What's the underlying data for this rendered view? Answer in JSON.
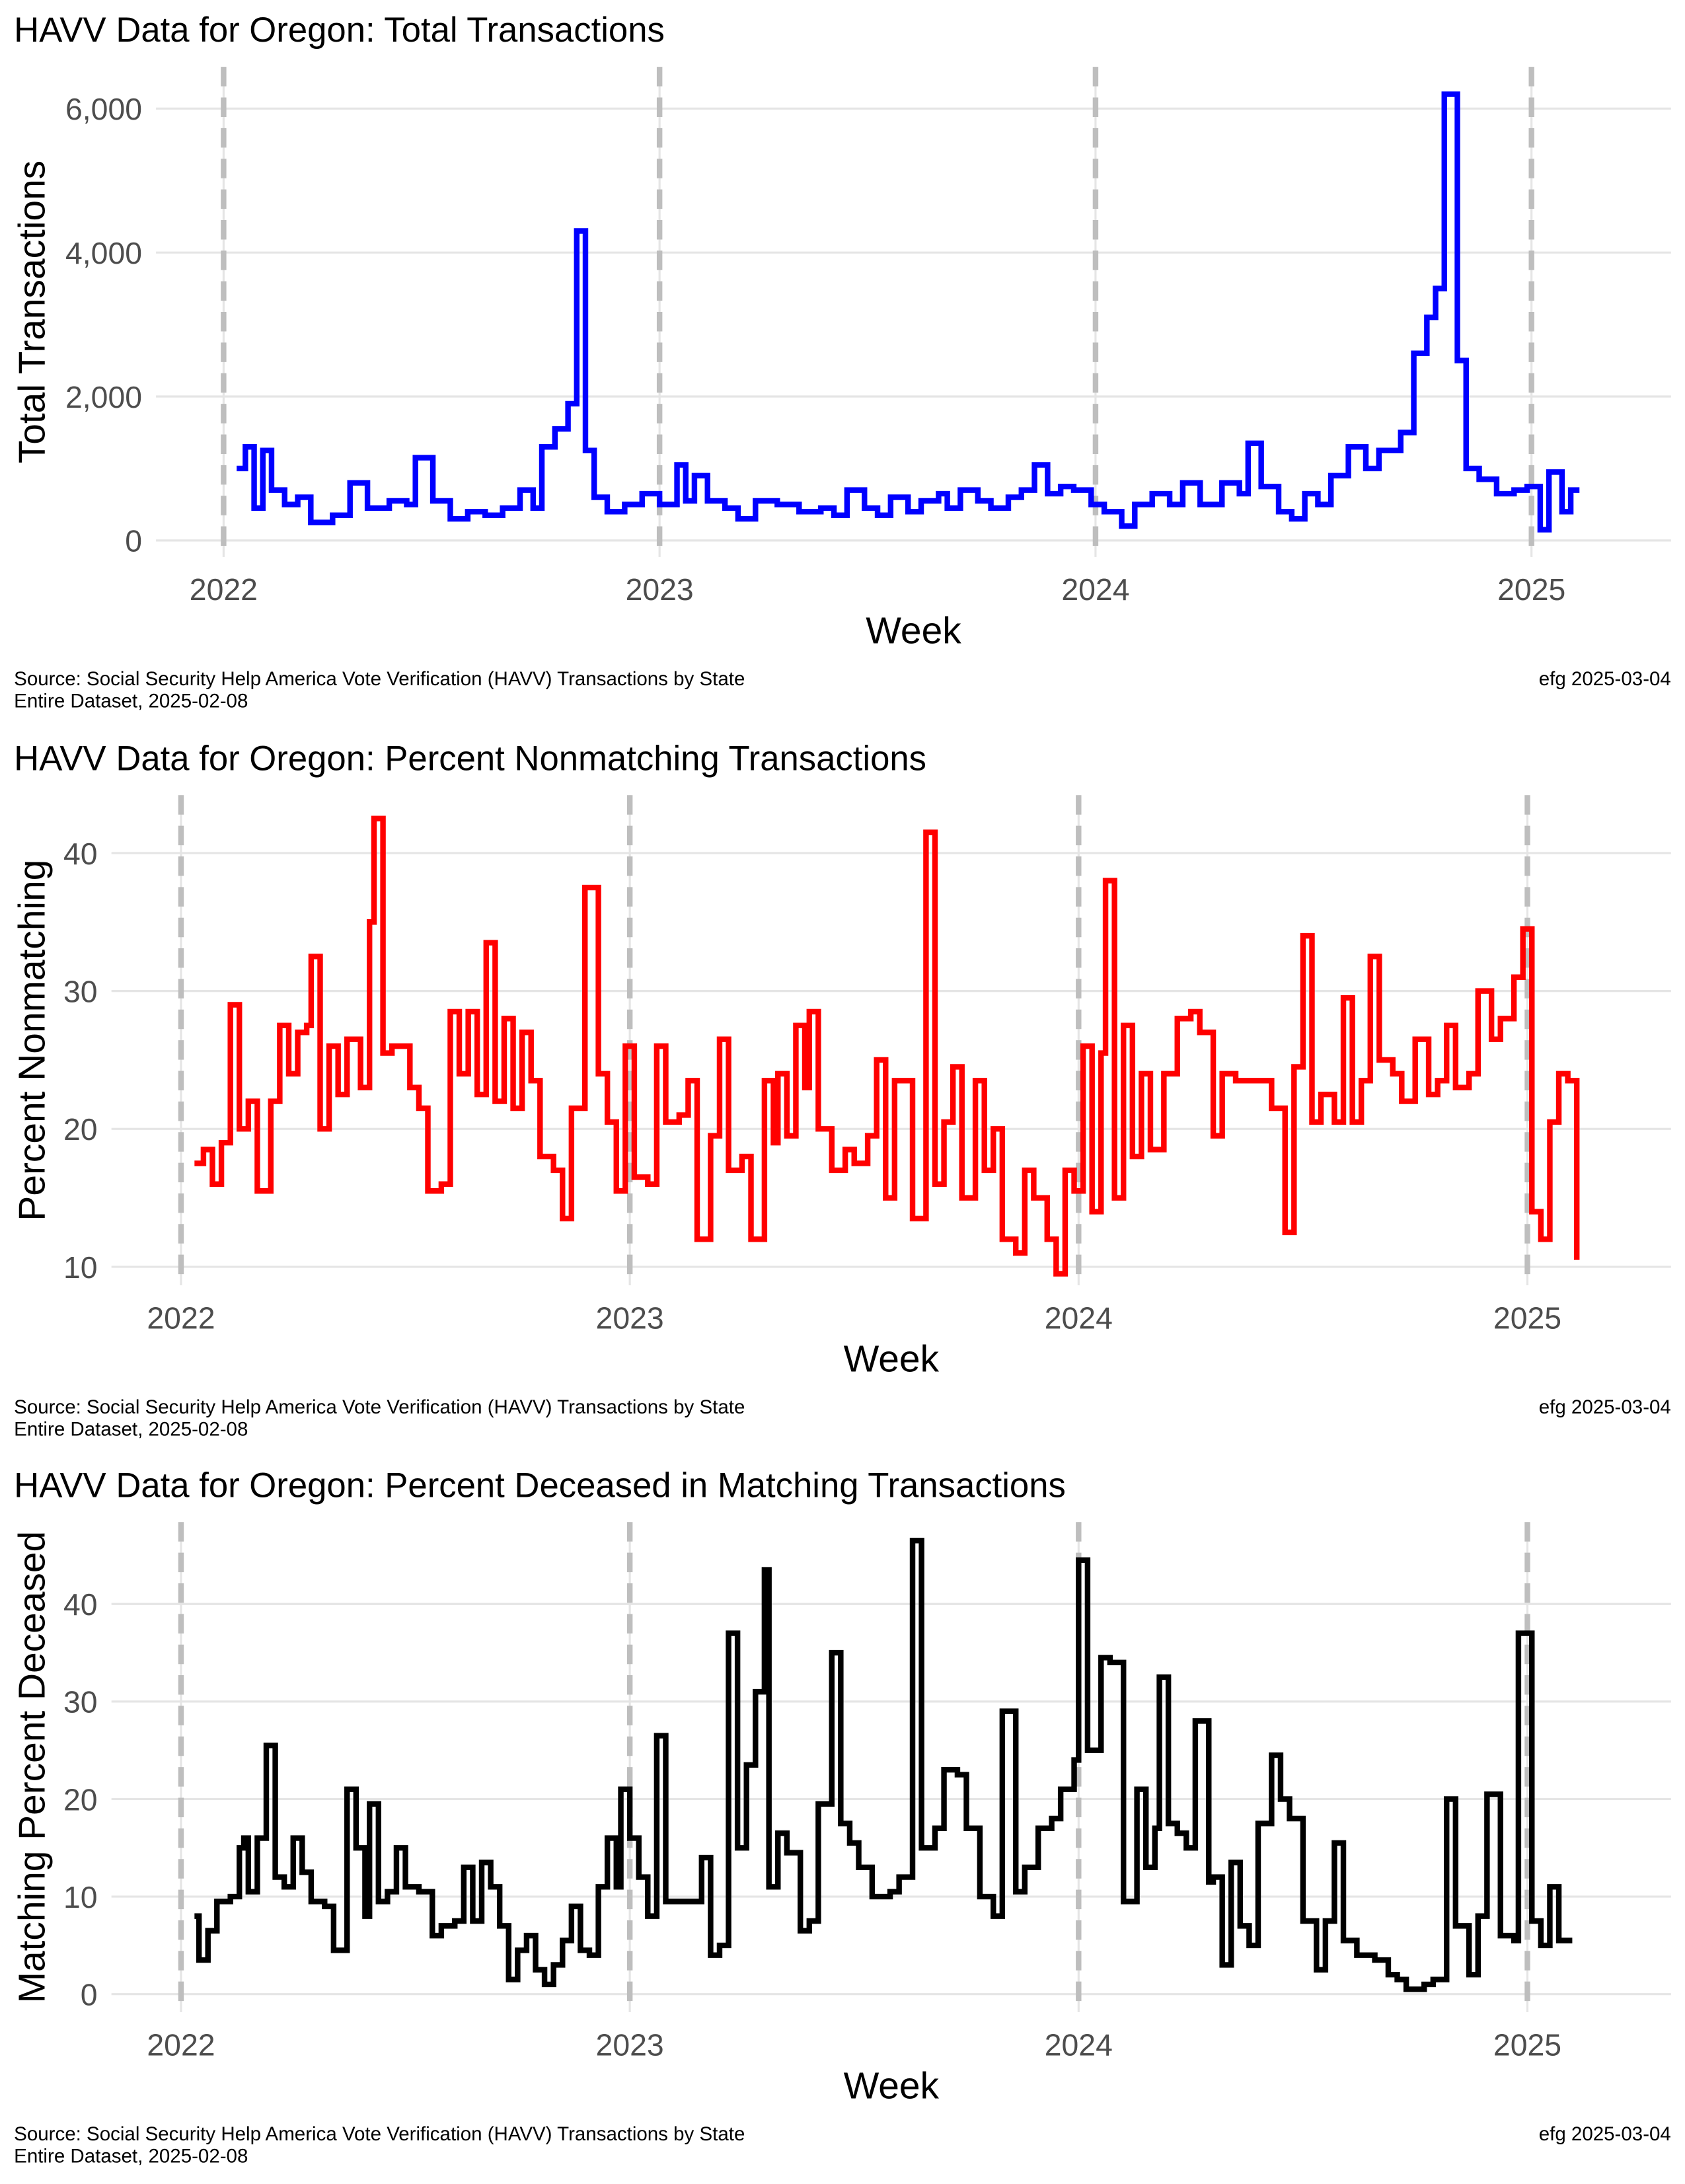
{
  "chart_data": [
    {
      "type": "line",
      "step": true,
      "title": "HAVV Data for Oregon:  Total Transactions",
      "xlabel": "Week",
      "ylabel": "Total Transactions",
      "source": "Source:  Social Security Help America Vote Verification (HAVV) Transactions by State",
      "dataset": "Entire Dataset, 2025-02-08",
      "credit": "efg 2025-03-04",
      "color": "#0000ff",
      "grid": true,
      "xlim": [
        2021.845,
        2025.32
      ],
      "xticks": [
        2022,
        2023,
        2024,
        2025
      ],
      "ylim": [
        -230,
        6580
      ],
      "yticks": [
        0,
        {
          "value": 2000,
          "label": "2,000"
        },
        {
          "value": 4000,
          "label": "4,000"
        },
        {
          "value": 6000,
          "label": "6,000"
        }
      ],
      "x": [
        2022.03,
        2022.05,
        2022.07,
        2022.09,
        2022.11,
        2022.14,
        2022.17,
        2022.2,
        2022.25,
        2022.29,
        2022.33,
        2022.38,
        2022.42,
        2022.44,
        2022.48,
        2022.52,
        2022.56,
        2022.6,
        2022.64,
        2022.68,
        2022.71,
        2022.73,
        2022.76,
        2022.79,
        2022.81,
        2022.83,
        2022.85,
        2022.88,
        2022.92,
        2022.96,
        2023.0,
        2023.04,
        2023.06,
        2023.08,
        2023.11,
        2023.15,
        2023.18,
        2023.22,
        2023.27,
        2023.32,
        2023.37,
        2023.4,
        2023.43,
        2023.47,
        2023.5,
        2023.53,
        2023.57,
        2023.6,
        2023.64,
        2023.66,
        2023.69,
        2023.73,
        2023.76,
        2023.8,
        2023.83,
        2023.86,
        2023.89,
        2023.92,
        2023.95,
        2023.99,
        2024.02,
        2024.06,
        2024.09,
        2024.13,
        2024.17,
        2024.2,
        2024.24,
        2024.29,
        2024.33,
        2024.35,
        2024.38,
        2024.42,
        2024.45,
        2024.48,
        2024.51,
        2024.54,
        2024.58,
        2024.62,
        2024.65,
        2024.7,
        2024.73,
        2024.76,
        2024.78,
        2024.8,
        2024.83,
        2024.85,
        2024.88,
        2024.92,
        2024.96,
        2024.99,
        2025.02,
        2025.04,
        2025.07,
        2025.09,
        2025.11
      ],
      "values": [
        1000,
        1300,
        450,
        1250,
        700,
        500,
        600,
        250,
        350,
        800,
        450,
        550,
        500,
        1150,
        550,
        300,
        400,
        350,
        450,
        700,
        450,
        1300,
        1550,
        1900,
        4300,
        1250,
        600,
        400,
        500,
        650,
        500,
        1050,
        550,
        900,
        550,
        450,
        300,
        550,
        500,
        400,
        450,
        350,
        700,
        450,
        350,
        600,
        400,
        550,
        650,
        450,
        700,
        550,
        450,
        600,
        700,
        1050,
        650,
        750,
        700,
        500,
        400,
        200,
        500,
        650,
        500,
        800,
        500,
        800,
        650,
        1350,
        750,
        400,
        300,
        650,
        500,
        900,
        1300,
        1000,
        1250,
        1500,
        2600,
        3100,
        3500,
        6200,
        2500,
        1000,
        850,
        650,
        700,
        750,
        150,
        950,
        400,
        700,
        700
      ]
    },
    {
      "type": "line",
      "step": true,
      "title": "HAVV Data for Oregon:  Percent Nonmatching Transactions",
      "xlabel": "Week",
      "ylabel": "Percent Nonmatching",
      "source": "Source:  Social Security Help America Vote Verification (HAVV) Transactions by State",
      "dataset": "Entire Dataset, 2025-02-08",
      "credit": "efg 2025-03-04",
      "color": "#ff0000",
      "grid": true,
      "xlim": [
        2021.845,
        2025.32
      ],
      "xticks": [
        2022,
        2023,
        2024,
        2025
      ],
      "ylim": [
        8.66,
        44.2
      ],
      "yticks": [
        10,
        20,
        30,
        40
      ],
      "x": [
        2022.03,
        2022.05,
        2022.07,
        2022.09,
        2022.11,
        2022.13,
        2022.15,
        2022.17,
        2022.2,
        2022.22,
        2022.24,
        2022.26,
        2022.28,
        2022.29,
        2022.31,
        2022.33,
        2022.35,
        2022.37,
        2022.4,
        2022.42,
        2022.43,
        2022.45,
        2022.47,
        2022.51,
        2022.53,
        2022.55,
        2022.58,
        2022.6,
        2022.62,
        2022.64,
        2022.66,
        2022.68,
        2022.7,
        2022.72,
        2022.74,
        2022.76,
        2022.78,
        2022.8,
        2022.83,
        2022.85,
        2022.87,
        2022.9,
        2022.93,
        2022.95,
        2022.97,
        2022.99,
        2023.01,
        2023.04,
        2023.06,
        2023.08,
        2023.11,
        2023.13,
        2023.15,
        2023.18,
        2023.2,
        2023.22,
        2023.25,
        2023.27,
        2023.3,
        2023.32,
        2023.33,
        2023.35,
        2023.37,
        2023.39,
        2023.4,
        2023.42,
        2023.45,
        2023.48,
        2023.5,
        2023.53,
        2023.55,
        2023.57,
        2023.59,
        2023.62,
        2023.63,
        2023.66,
        2023.68,
        2023.7,
        2023.72,
        2023.74,
        2023.77,
        2023.79,
        2023.81,
        2023.83,
        2023.86,
        2023.88,
        2023.9,
        2023.93,
        2023.95,
        2023.97,
        2023.99,
        2024.01,
        2024.03,
        2024.05,
        2024.06,
        2024.08,
        2024.1,
        2024.12,
        2024.14,
        2024.16,
        2024.19,
        2024.22,
        2024.25,
        2024.27,
        2024.3,
        2024.32,
        2024.35,
        2024.4,
        2024.43,
        2024.46,
        2024.48,
        2024.5,
        2024.52,
        2024.54,
        2024.57,
        2024.59,
        2024.61,
        2024.63,
        2024.65,
        2024.67,
        2024.7,
        2024.72,
        2024.75,
        2024.78,
        2024.8,
        2024.82,
        2024.84,
        2024.87,
        2024.89,
        2024.92,
        2024.94,
        2024.97,
        2024.99,
        2025.01,
        2025.03,
        2025.05,
        2025.07,
        2025.09,
        2025.11
      ],
      "values": [
        17.5,
        18.5,
        16,
        19,
        29,
        20,
        22,
        15.5,
        22,
        27.5,
        24,
        27,
        27.5,
        32.5,
        20,
        26,
        22.5,
        26.5,
        23,
        35,
        42.5,
        25.5,
        26,
        23,
        21.5,
        15.5,
        16,
        28.5,
        24,
        28.5,
        22.5,
        33.5,
        22,
        28,
        21.5,
        27,
        23.5,
        18,
        17,
        13.5,
        21.5,
        37.5,
        24,
        20.5,
        15.5,
        26,
        16.5,
        16,
        26,
        20.5,
        21,
        23.5,
        12,
        19.5,
        26.5,
        17,
        18,
        12,
        23.5,
        19,
        24,
        19.5,
        27.5,
        23,
        28.5,
        20,
        17,
        18.5,
        17.5,
        19.5,
        25,
        15,
        23.5,
        23.5,
        13.5,
        41.5,
        16,
        20.5,
        24.5,
        15,
        23.5,
        17,
        20,
        12,
        11,
        17,
        15,
        12,
        9.5,
        17,
        15.5,
        26,
        14,
        25.5,
        38,
        15,
        27.5,
        18,
        24,
        18.5,
        24,
        28,
        28.5,
        27,
        19.5,
        24,
        23.5,
        23.5,
        21.5,
        12.5,
        24.5,
        34,
        20.5,
        22.5,
        20.5,
        29.5,
        20.5,
        23.5,
        32.5,
        25,
        24,
        22,
        26.5,
        22.5,
        23.5,
        27.5,
        23,
        24,
        30,
        26.5,
        28,
        31,
        34.5,
        14,
        12,
        20.5,
        24,
        23.5,
        10.5
      ]
    },
    {
      "type": "line",
      "step": true,
      "title": "HAVV Data for Oregon:  Percent Deceased in Matching Transactions",
      "xlabel": "Week",
      "ylabel": "Matching Percent Deceased",
      "source": "Source:  Social Security Help America Vote Verification (HAVV) Transactions by State",
      "dataset": "Entire Dataset, 2025-02-08",
      "credit": "efg 2025-03-04",
      "color": "#000000",
      "grid": true,
      "xlim": [
        2021.845,
        2025.32
      ],
      "xticks": [
        2022,
        2023,
        2024,
        2025
      ],
      "ylim": [
        -1.85,
        48.4
      ],
      "yticks": [
        0,
        10,
        20,
        30,
        40
      ],
      "x": [
        2022.03,
        2022.04,
        2022.06,
        2022.08,
        2022.11,
        2022.13,
        2022.14,
        2022.15,
        2022.17,
        2022.19,
        2022.21,
        2022.23,
        2022.25,
        2022.27,
        2022.29,
        2022.32,
        2022.34,
        2022.37,
        2022.39,
        2022.41,
        2022.42,
        2022.44,
        2022.46,
        2022.48,
        2022.5,
        2022.53,
        2022.56,
        2022.58,
        2022.61,
        2022.63,
        2022.65,
        2022.67,
        2022.69,
        2022.71,
        2022.73,
        2022.75,
        2022.77,
        2022.79,
        2022.81,
        2022.83,
        2022.85,
        2022.87,
        2022.89,
        2022.91,
        2022.93,
        2022.95,
        2022.97,
        2022.98,
        2023.0,
        2023.02,
        2023.04,
        2023.06,
        2023.08,
        2023.12,
        2023.16,
        2023.18,
        2023.2,
        2023.22,
        2023.24,
        2023.26,
        2023.28,
        2023.3,
        2023.31,
        2023.33,
        2023.35,
        2023.38,
        2023.4,
        2023.42,
        2023.45,
        2023.47,
        2023.49,
        2023.51,
        2023.54,
        2023.58,
        2023.6,
        2023.63,
        2023.65,
        2023.68,
        2023.7,
        2023.73,
        2023.75,
        2023.78,
        2023.81,
        2023.83,
        2023.86,
        2023.88,
        2023.91,
        2023.94,
        2023.96,
        2023.99,
        2024.0,
        2024.02,
        2024.05,
        2024.07,
        2024.1,
        2024.13,
        2024.15,
        2024.17,
        2024.18,
        2024.2,
        2024.22,
        2024.24,
        2024.26,
        2024.29,
        2024.3,
        2024.32,
        2024.34,
        2024.36,
        2024.38,
        2024.4,
        2024.43,
        2024.45,
        2024.47,
        2024.5,
        2024.53,
        2024.55,
        2024.57,
        2024.59,
        2024.62,
        2024.66,
        2024.69,
        2024.71,
        2024.73,
        2024.77,
        2024.79,
        2024.82,
        2024.84,
        2024.87,
        2024.89,
        2024.91,
        2024.94,
        2024.97,
        2024.98,
        2025.01,
        2025.03,
        2025.05,
        2025.07,
        2025.1
      ],
      "values": [
        8,
        3.5,
        6.5,
        9.5,
        10,
        15,
        16,
        10.5,
        16,
        25.5,
        12,
        11,
        16,
        12.5,
        9.5,
        9,
        4.5,
        21,
        15,
        8,
        19.5,
        9.5,
        10.5,
        15,
        11,
        10.5,
        6,
        7,
        7.5,
        13,
        7.5,
        13.5,
        11,
        7,
        1.5,
        4.5,
        6,
        2.5,
        1,
        3,
        5.5,
        9,
        4.5,
        4,
        11,
        16,
        11,
        21,
        16,
        12,
        8,
        26.5,
        9.5,
        9.5,
        14,
        4,
        5,
        37,
        15,
        23.5,
        31,
        43.5,
        11,
        16.5,
        14.5,
        6.5,
        7.5,
        19.5,
        35,
        17.5,
        15.5,
        13,
        10,
        10.5,
        12,
        46.5,
        15,
        17,
        23,
        22.5,
        17,
        10,
        8,
        29,
        10.5,
        13,
        17,
        18,
        21,
        24,
        44.5,
        25,
        34.5,
        34,
        9.5,
        21,
        13,
        17,
        32.5,
        17.5,
        16.5,
        15,
        28,
        11.5,
        12,
        3,
        13.5,
        7,
        5,
        17.5,
        24.5,
        20,
        18,
        7.5,
        2.5,
        7.5,
        15.5,
        5.5,
        4,
        3.5,
        2,
        1.5,
        0.5,
        1,
        1.5,
        20,
        7,
        2,
        8,
        20.5,
        6,
        5.5,
        37,
        7.5,
        5,
        11,
        5.5,
        5.5
      ]
    }
  ]
}
